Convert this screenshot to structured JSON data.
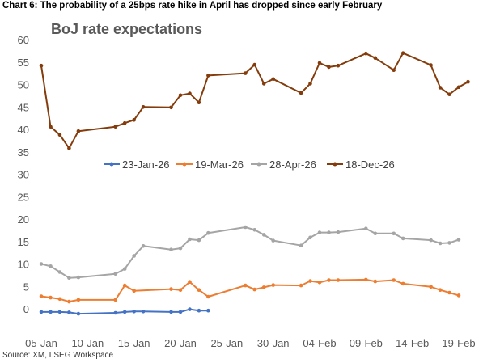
{
  "caption": "Chart 6: The probability of a 25bps rate hike in April has dropped since early February",
  "source": "Source: XM, LSEG Workspace",
  "chart_data": {
    "type": "line",
    "title": "BoJ rate expectations",
    "xlabel": "",
    "ylabel": "",
    "ylim": [
      -3,
      60
    ],
    "yticks": [
      0,
      5,
      10,
      15,
      20,
      25,
      30,
      35,
      40,
      45,
      50,
      55,
      60
    ],
    "xlim": [
      "2026-01-05",
      "2026-02-19"
    ],
    "xticks": [
      "2026-01-05",
      "2026-01-10",
      "2026-01-15",
      "2026-01-20",
      "2026-01-25",
      "2026-01-30",
      "2026-02-04",
      "2026-02-09",
      "2026-02-14",
      "2026-02-19"
    ],
    "xticklabels": [
      "05-Jan",
      "10-Jan",
      "15-Jan",
      "20-Jan",
      "25-Jan",
      "30-Jan",
      "04-Feb",
      "09-Feb",
      "14-Feb",
      "19-Feb"
    ],
    "grid": false,
    "legend_position": "middle",
    "series": [
      {
        "name": "23-Jan-26",
        "color": "#4472C4",
        "points": [
          [
            "2026-01-05",
            -0.7
          ],
          [
            "2026-01-06",
            -0.7
          ],
          [
            "2026-01-07",
            -0.7
          ],
          [
            "2026-01-08",
            -0.8
          ],
          [
            "2026-01-09",
            -1.1
          ],
          [
            "2026-01-13",
            -0.9
          ],
          [
            "2026-01-14",
            -0.7
          ],
          [
            "2026-01-15",
            -0.6
          ],
          [
            "2026-01-16",
            -0.6
          ],
          [
            "2026-01-19",
            -0.7
          ],
          [
            "2026-01-20",
            -0.7
          ],
          [
            "2026-01-21",
            -0.1
          ],
          [
            "2026-01-22",
            -0.4
          ],
          [
            "2026-01-23",
            -0.4
          ]
        ]
      },
      {
        "name": "19-Mar-26",
        "color": "#ED7D31",
        "points": [
          [
            "2026-01-05",
            2.8
          ],
          [
            "2026-01-06",
            2.5
          ],
          [
            "2026-01-07",
            2.2
          ],
          [
            "2026-01-08",
            1.6
          ],
          [
            "2026-01-09",
            2.0
          ],
          [
            "2026-01-13",
            2.0
          ],
          [
            "2026-01-14",
            5.2
          ],
          [
            "2026-01-15",
            4.0
          ],
          [
            "2026-01-19",
            4.4
          ],
          [
            "2026-01-20",
            4.2
          ],
          [
            "2026-01-21",
            6.0
          ],
          [
            "2026-01-22",
            4.2
          ],
          [
            "2026-01-23",
            2.7
          ],
          [
            "2026-01-27",
            5.2
          ],
          [
            "2026-01-28",
            4.3
          ],
          [
            "2026-01-29",
            4.8
          ],
          [
            "2026-01-30",
            5.3
          ],
          [
            "2026-02-02",
            5.2
          ],
          [
            "2026-02-03",
            6.2
          ],
          [
            "2026-02-04",
            5.9
          ],
          [
            "2026-02-05",
            6.4
          ],
          [
            "2026-02-06",
            6.4
          ],
          [
            "2026-02-09",
            6.5
          ],
          [
            "2026-02-10",
            6.1
          ],
          [
            "2026-02-12",
            6.4
          ],
          [
            "2026-02-13",
            5.6
          ],
          [
            "2026-02-16",
            4.9
          ],
          [
            "2026-02-17",
            4.2
          ],
          [
            "2026-02-18",
            3.6
          ],
          [
            "2026-02-19",
            3.0
          ]
        ]
      },
      {
        "name": "28-Apr-26",
        "color": "#A5A5A5",
        "points": [
          [
            "2026-01-05",
            10.0
          ],
          [
            "2026-01-06",
            9.5
          ],
          [
            "2026-01-07",
            8.2
          ],
          [
            "2026-01-08",
            6.9
          ],
          [
            "2026-01-09",
            7.0
          ],
          [
            "2026-01-13",
            7.8
          ],
          [
            "2026-01-14",
            8.9
          ],
          [
            "2026-01-15",
            11.8
          ],
          [
            "2026-01-16",
            14.0
          ],
          [
            "2026-01-19",
            13.2
          ],
          [
            "2026-01-20",
            13.5
          ],
          [
            "2026-01-21",
            15.5
          ],
          [
            "2026-01-22",
            15.3
          ],
          [
            "2026-01-23",
            16.9
          ],
          [
            "2026-01-27",
            18.2
          ],
          [
            "2026-01-28",
            17.6
          ],
          [
            "2026-01-29",
            16.5
          ],
          [
            "2026-01-30",
            15.2
          ],
          [
            "2026-02-02",
            14.1
          ],
          [
            "2026-02-03",
            15.9
          ],
          [
            "2026-02-04",
            17.0
          ],
          [
            "2026-02-05",
            17.0
          ],
          [
            "2026-02-06",
            17.1
          ],
          [
            "2026-02-09",
            17.9
          ],
          [
            "2026-02-10",
            16.8
          ],
          [
            "2026-02-12",
            16.8
          ],
          [
            "2026-02-13",
            15.7
          ],
          [
            "2026-02-16",
            15.3
          ],
          [
            "2026-02-17",
            14.6
          ],
          [
            "2026-02-18",
            14.7
          ],
          [
            "2026-02-19",
            15.4
          ]
        ]
      },
      {
        "name": "18-Dec-26",
        "color": "#843C0C",
        "points": [
          [
            "2026-01-05",
            54.2
          ],
          [
            "2026-01-06",
            40.6
          ],
          [
            "2026-01-07",
            38.8
          ],
          [
            "2026-01-08",
            35.8
          ],
          [
            "2026-01-09",
            39.6
          ],
          [
            "2026-01-13",
            40.6
          ],
          [
            "2026-01-14",
            41.4
          ],
          [
            "2026-01-15",
            42.1
          ],
          [
            "2026-01-16",
            45.0
          ],
          [
            "2026-01-19",
            44.9
          ],
          [
            "2026-01-20",
            47.6
          ],
          [
            "2026-01-21",
            48.0
          ],
          [
            "2026-01-22",
            46.0
          ],
          [
            "2026-01-23",
            52.0
          ],
          [
            "2026-01-27",
            52.5
          ],
          [
            "2026-01-28",
            54.4
          ],
          [
            "2026-01-29",
            50.2
          ],
          [
            "2026-01-30",
            51.2
          ],
          [
            "2026-02-02",
            48.1
          ],
          [
            "2026-02-03",
            50.2
          ],
          [
            "2026-02-04",
            54.8
          ],
          [
            "2026-02-05",
            53.9
          ],
          [
            "2026-02-06",
            54.2
          ],
          [
            "2026-02-09",
            56.9
          ],
          [
            "2026-02-10",
            55.9
          ],
          [
            "2026-02-12",
            53.2
          ],
          [
            "2026-02-13",
            57.0
          ],
          [
            "2026-02-16",
            54.3
          ],
          [
            "2026-02-17",
            49.3
          ],
          [
            "2026-02-18",
            47.8
          ],
          [
            "2026-02-19",
            49.4
          ],
          [
            "2026-02-20",
            50.6
          ]
        ]
      }
    ]
  }
}
